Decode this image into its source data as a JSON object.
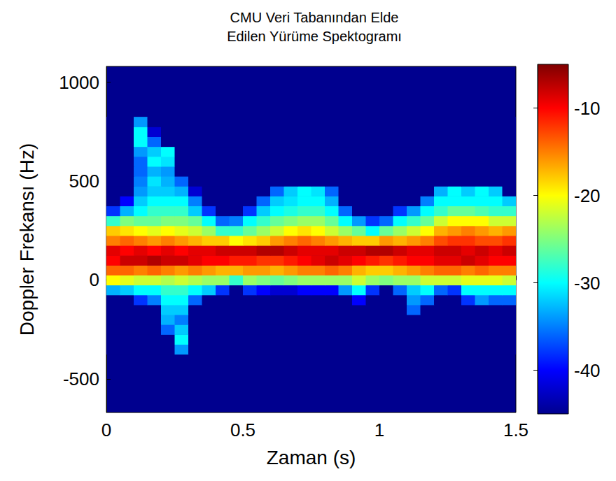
{
  "chart_data": {
    "type": "heatmap",
    "title": "CMU Veri Tabanından Elde\nEdilen Yürüme Spektogramı",
    "x_label": "Zaman (s)",
    "y_label": "Doppler Frekansı (Hz)",
    "xlim": [
      0,
      1.5
    ],
    "xticks": [
      0,
      0.5,
      1,
      1.5
    ],
    "ylim": [
      -670,
      1080
    ],
    "yticks": [
      -500,
      0,
      500,
      1000
    ],
    "grid": false,
    "time": [
      0.025,
      0.075,
      0.125,
      0.175,
      0.225,
      0.275,
      0.325,
      0.375,
      0.425,
      0.475,
      0.525,
      0.575,
      0.625,
      0.675,
      0.725,
      0.775,
      0.825,
      0.875,
      0.925,
      0.975,
      1.025,
      1.075,
      1.125,
      1.175,
      1.225,
      1.275,
      1.325,
      1.375,
      1.425,
      1.475
    ],
    "frequency": [
      -350,
      -300,
      -250,
      -200,
      -150,
      -100,
      -50,
      0,
      50,
      100,
      150,
      200,
      250,
      300,
      350,
      400,
      450,
      500,
      550,
      600,
      650,
      700,
      750,
      800
    ],
    "power": [
      [
        -45,
        -45,
        -45,
        -45,
        -45,
        -34,
        -45,
        -45,
        -45,
        -45,
        -45,
        -45,
        -45,
        -45,
        -45,
        -45,
        -45,
        -45,
        -45,
        -45,
        -45,
        -45,
        -45,
        -45,
        -45,
        -45,
        -45,
        -45,
        -45,
        -45
      ],
      [
        -45,
        -45,
        -45,
        -45,
        -45,
        -30,
        -45,
        -45,
        -45,
        -45,
        -45,
        -45,
        -45,
        -45,
        -45,
        -45,
        -45,
        -45,
        -45,
        -45,
        -45,
        -45,
        -45,
        -45,
        -45,
        -45,
        -45,
        -45,
        -45,
        -45
      ],
      [
        -45,
        -45,
        -45,
        -45,
        -36,
        -32,
        -45,
        -45,
        -45,
        -45,
        -45,
        -45,
        -45,
        -45,
        -45,
        -45,
        -45,
        -45,
        -45,
        -45,
        -45,
        -45,
        -45,
        -45,
        -45,
        -45,
        -45,
        -45,
        -45,
        -45
      ],
      [
        -45,
        -45,
        -45,
        -45,
        -33,
        -35,
        -45,
        -45,
        -45,
        -45,
        -45,
        -45,
        -45,
        -45,
        -45,
        -45,
        -45,
        -45,
        -45,
        -45,
        -45,
        -45,
        -45,
        -45,
        -45,
        -45,
        -45,
        -45,
        -45,
        -45
      ],
      [
        -45,
        -45,
        -45,
        -45,
        -32,
        -32,
        -45,
        -45,
        -45,
        -45,
        -45,
        -45,
        -45,
        -45,
        -45,
        -45,
        -45,
        -45,
        -45,
        -45,
        -45,
        -45,
        -36,
        -45,
        -45,
        -45,
        -45,
        -45,
        -45,
        -45
      ],
      [
        -45,
        -45,
        -38,
        -35,
        -30,
        -30,
        -36,
        -45,
        -45,
        -45,
        -45,
        -45,
        -45,
        -45,
        -45,
        -45,
        -45,
        -45,
        -40,
        -45,
        -45,
        -45,
        -34,
        -36,
        -45,
        -45,
        -38,
        -34,
        -36,
        -36
      ],
      [
        -33,
        -32,
        -30,
        -30,
        -28,
        -28,
        -30,
        -32,
        -38,
        -45,
        -38,
        -40,
        -42,
        -42,
        -40,
        -40,
        -40,
        -34,
        -30,
        -38,
        -45,
        -36,
        -32,
        -30,
        -36,
        -38,
        -30,
        -30,
        -30,
        -30
      ],
      [
        -20,
        -21,
        -22,
        -22,
        -23,
        -22,
        -23,
        -24,
        -24,
        -28,
        -24,
        -25,
        -26,
        -25,
        -24,
        -24,
        -24,
        -24,
        -22,
        -24,
        -25,
        -24,
        -24,
        -22,
        -22,
        -22,
        -21,
        -21,
        -21,
        -22
      ],
      [
        -14,
        -14,
        -15,
        -14,
        -15,
        -16,
        -15,
        -16,
        -17,
        -17,
        -16,
        -16,
        -17,
        -16,
        -15,
        -15,
        -14,
        -15,
        -17,
        -18,
        -18,
        -17,
        -16,
        -15,
        -14,
        -14,
        -15,
        -14,
        -15,
        -15
      ],
      [
        -10,
        -8,
        -8,
        -7,
        -8,
        -8,
        -9,
        -10,
        -10,
        -11,
        -11,
        -12,
        -12,
        -11,
        -10,
        -9,
        -8,
        -9,
        -10,
        -11,
        -12,
        -11,
        -10,
        -10,
        -9,
        -9,
        -8,
        -9,
        -10,
        -10
      ],
      [
        -9,
        -10,
        -9,
        -10,
        -9,
        -10,
        -9,
        -9,
        -8,
        -8,
        -8,
        -7,
        -7,
        -8,
        -9,
        -9,
        -9,
        -8,
        -8,
        -7,
        -7,
        -8,
        -9,
        -9,
        -8,
        -8,
        -9,
        -8,
        -9,
        -8
      ],
      [
        -15,
        -14,
        -15,
        -16,
        -15,
        -16,
        -17,
        -18,
        -18,
        -20,
        -19,
        -18,
        -16,
        -15,
        -14,
        -15,
        -16,
        -17,
        -18,
        -18,
        -16,
        -17,
        -16,
        -15,
        -13,
        -12,
        -12,
        -13,
        -13,
        -12
      ],
      [
        -18,
        -19,
        -20,
        -21,
        -20,
        -21,
        -22,
        -24,
        -28,
        -28,
        -26,
        -24,
        -22,
        -20,
        -19,
        -20,
        -22,
        -24,
        -26,
        -30,
        -26,
        -24,
        -22,
        -20,
        -17,
        -16,
        -15,
        -16,
        -17,
        -16
      ],
      [
        -28,
        -25,
        -26,
        -26,
        -25,
        -25,
        -26,
        -30,
        -36,
        -35,
        -30,
        -28,
        -26,
        -25,
        -24,
        -24,
        -26,
        -30,
        -34,
        -38,
        -36,
        -30,
        -28,
        -26,
        -22,
        -20,
        -20,
        -20,
        -22,
        -22
      ],
      [
        -38,
        -33,
        -30,
        -28,
        -28,
        -28,
        -32,
        -38,
        -45,
        -45,
        -38,
        -32,
        -30,
        -29,
        -28,
        -28,
        -30,
        -36,
        -45,
        -45,
        -45,
        -38,
        -34,
        -30,
        -28,
        -26,
        -26,
        -27,
        -28,
        -28
      ],
      [
        -45,
        -40,
        -32,
        -30,
        -30,
        -30,
        -35,
        -45,
        -45,
        -45,
        -45,
        -36,
        -32,
        -31,
        -30,
        -30,
        -33,
        -45,
        -45,
        -45,
        -45,
        -45,
        -45,
        -35,
        -30,
        -30,
        -30,
        -30,
        -30,
        -32
      ],
      [
        -45,
        -45,
        -34,
        -32,
        -32,
        -33,
        -42,
        -45,
        -45,
        -45,
        -45,
        -45,
        -36,
        -32,
        -30,
        -31,
        -36,
        -45,
        -45,
        -45,
        -45,
        -45,
        -45,
        -45,
        -33,
        -30,
        -32,
        -30,
        -32,
        -45
      ],
      [
        -45,
        -45,
        -35,
        -31,
        -33,
        -36,
        -45,
        -45,
        -45,
        -45,
        -45,
        -45,
        -45,
        -45,
        -45,
        -45,
        -45,
        -45,
        -45,
        -45,
        -45,
        -45,
        -45,
        -45,
        -45,
        -45,
        -45,
        -45,
        -45,
        -45
      ],
      [
        -45,
        -45,
        -36,
        -33,
        -34,
        -45,
        -45,
        -45,
        -45,
        -45,
        -45,
        -45,
        -45,
        -45,
        -45,
        -45,
        -45,
        -45,
        -45,
        -45,
        -45,
        -45,
        -45,
        -45,
        -45,
        -45,
        -45,
        -45,
        -45,
        -45
      ],
      [
        -45,
        -45,
        -36,
        -30,
        -31,
        -45,
        -45,
        -45,
        -45,
        -45,
        -45,
        -45,
        -45,
        -45,
        -45,
        -45,
        -45,
        -45,
        -45,
        -45,
        -45,
        -45,
        -45,
        -45,
        -45,
        -45,
        -45,
        -45,
        -45,
        -45
      ],
      [
        -45,
        -45,
        -34,
        -32,
        -30,
        -45,
        -45,
        -45,
        -45,
        -45,
        -45,
        -45,
        -45,
        -45,
        -45,
        -45,
        -45,
        -45,
        -45,
        -45,
        -45,
        -45,
        -45,
        -45,
        -45,
        -45,
        -45,
        -45,
        -45,
        -45
      ],
      [
        -45,
        -45,
        -30,
        -36,
        -45,
        -45,
        -45,
        -45,
        -45,
        -45,
        -45,
        -45,
        -45,
        -45,
        -45,
        -45,
        -45,
        -45,
        -45,
        -45,
        -45,
        -45,
        -45,
        -45,
        -45,
        -45,
        -45,
        -45,
        -45,
        -45
      ],
      [
        -45,
        -45,
        -30,
        -42,
        -45,
        -45,
        -45,
        -45,
        -45,
        -45,
        -45,
        -45,
        -45,
        -45,
        -45,
        -45,
        -45,
        -45,
        -45,
        -45,
        -45,
        -45,
        -45,
        -45,
        -45,
        -45,
        -45,
        -45,
        -45,
        -45
      ],
      [
        -45,
        -45,
        -34,
        -45,
        -45,
        -45,
        -45,
        -45,
        -45,
        -45,
        -45,
        -45,
        -45,
        -45,
        -45,
        -45,
        -45,
        -45,
        -45,
        -45,
        -45,
        -45,
        -45,
        -45,
        -45,
        -45,
        -45,
        -45,
        -45,
        -45
      ]
    ],
    "colorbar": {
      "range": [
        -45,
        -5
      ],
      "ticks": [
        -40,
        -30,
        -20,
        -10
      ]
    }
  }
}
